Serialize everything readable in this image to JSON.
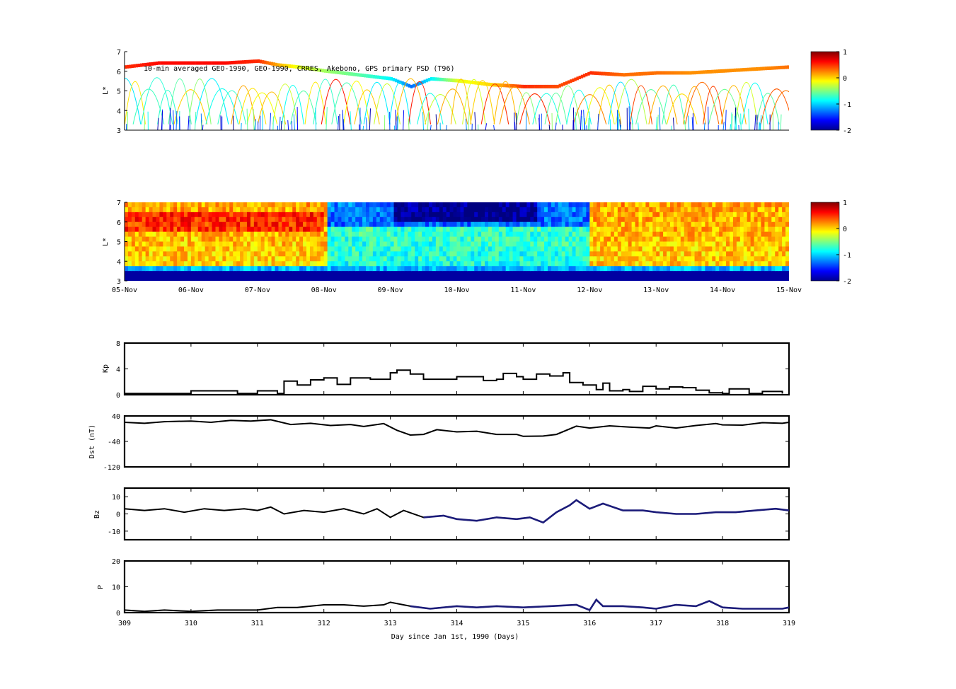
{
  "chart_data": [
    {
      "type": "scatter",
      "name": "observed-psd",
      "title": "10-min averaged GEO-1990, GEO-1990, CRRES, Akebono, GPS  primary PSD (T96)",
      "ylabel": "L*",
      "ylim": [
        3,
        7
      ],
      "yticks": [
        "3",
        "4",
        "5",
        "6",
        "7"
      ],
      "colorbar": {
        "ticks": [
          "1",
          "0",
          "-1",
          "-2"
        ],
        "range": [
          -2,
          1
        ]
      },
      "geo_track": {
        "x": [
          309.0,
          309.5,
          310.0,
          310.5,
          311.0,
          311.3,
          311.6,
          312.0,
          312.5,
          313.0,
          313.3,
          313.6,
          314.0,
          314.5,
          315.0,
          315.5,
          316.0,
          316.5,
          317.0,
          317.5,
          318.0,
          318.5,
          319.0
        ],
        "l": [
          6.2,
          6.4,
          6.4,
          6.4,
          6.5,
          6.3,
          6.2,
          6.0,
          5.8,
          5.6,
          5.2,
          5.6,
          5.5,
          5.3,
          5.2,
          5.2,
          5.9,
          5.8,
          5.9,
          5.9,
          6.0,
          6.1,
          6.2
        ],
        "v": [
          0.5,
          0.6,
          0.6,
          0.6,
          0.5,
          0.1,
          -0.2,
          -0.4,
          -0.6,
          -0.9,
          -1.3,
          -0.9,
          -0.2,
          0.0,
          0.5,
          0.4,
          0.5,
          0.3,
          0.3,
          0.2,
          0.2,
          0.2,
          0.3
        ]
      }
    },
    {
      "type": "heatmap",
      "name": "reanalysis-psd",
      "ylabel": "L*",
      "ylim": [
        3,
        7
      ],
      "yticks": [
        "3",
        "4",
        "5",
        "6",
        "7"
      ],
      "xticks": [
        "05-Nov",
        "06-Nov",
        "07-Nov",
        "08-Nov",
        "09-Nov",
        "10-Nov",
        "11-Nov",
        "12-Nov",
        "13-Nov",
        "14-Nov",
        "15-Nov"
      ],
      "colorbar": {
        "ticks": [
          "1",
          "0",
          "-1",
          "-2"
        ],
        "range": [
          -2,
          1
        ]
      }
    },
    {
      "type": "line",
      "name": "kp",
      "ylabel": "Kp",
      "ylim": [
        0,
        8
      ],
      "yticks": [
        "0",
        "4",
        "8"
      ],
      "x": [
        309.0,
        309.9,
        310.0,
        310.7,
        311.0,
        311.3,
        311.4,
        311.6,
        311.8,
        312.0,
        312.2,
        312.4,
        312.7,
        313.0,
        313.1,
        313.3,
        313.5,
        313.9,
        314.0,
        314.2,
        314.4,
        314.6,
        314.7,
        314.9,
        315.0,
        315.2,
        315.4,
        315.6,
        315.7,
        315.9,
        316.0,
        316.1,
        316.2,
        316.3,
        316.5,
        316.6,
        316.8,
        317.0,
        317.2,
        317.4,
        317.6,
        317.8,
        318.0,
        318.1,
        318.4,
        318.6,
        318.9
      ],
      "y": [
        0.2,
        0.2,
        0.6,
        0.2,
        0.6,
        0.2,
        2.1,
        1.5,
        2.3,
        2.6,
        1.6,
        2.6,
        2.4,
        3.4,
        3.8,
        3.2,
        2.4,
        2.4,
        2.8,
        2.8,
        2.2,
        2.4,
        3.3,
        2.8,
        2.4,
        3.2,
        2.9,
        3.4,
        1.9,
        1.5,
        1.5,
        0.8,
        1.8,
        0.6,
        0.8,
        0.5,
        1.3,
        0.9,
        1.2,
        1.1,
        0.7,
        0.3,
        0.2,
        0.9,
        0.2,
        0.5,
        0.2
      ],
      "xlim": [
        309,
        319
      ]
    },
    {
      "type": "line",
      "name": "dst",
      "ylabel": "Dst (nT)",
      "ylim": [
        -120,
        40
      ],
      "yticks": [
        "40",
        "-40",
        "-120"
      ],
      "x": [
        309.0,
        309.3,
        309.6,
        310.0,
        310.3,
        310.6,
        310.9,
        311.2,
        311.5,
        311.8,
        312.1,
        312.4,
        312.6,
        312.9,
        313.1,
        313.3,
        313.5,
        313.7,
        314.0,
        314.3,
        314.6,
        314.9,
        315.0,
        315.3,
        315.5,
        315.8,
        316.0,
        316.3,
        316.6,
        316.9,
        317.0,
        317.3,
        317.6,
        317.9,
        318.0,
        318.3,
        318.6,
        318.9,
        319.0
      ],
      "y": [
        20,
        17,
        22,
        24,
        20,
        26,
        24,
        28,
        13,
        17,
        10,
        13,
        7,
        16,
        -5,
        -20,
        -18,
        -3,
        -10,
        -8,
        -18,
        -18,
        -24,
        -23,
        -18,
        8,
        2,
        9,
        5,
        2,
        9,
        2,
        10,
        16,
        12,
        11,
        19,
        17,
        20
      ],
      "xlim": [
        309,
        319
      ]
    },
    {
      "type": "line",
      "name": "bz",
      "ylabel": "Bz",
      "ylim": [
        -15,
        15
      ],
      "yticks": [
        "10",
        "0",
        "-10"
      ],
      "x": [
        309.0,
        309.3,
        309.6,
        309.9,
        310.2,
        310.5,
        310.8,
        311.0,
        311.2,
        311.4,
        311.7,
        312.0,
        312.3,
        312.6,
        312.8,
        313.0,
        313.2,
        313.5,
        313.8,
        314.0,
        314.3,
        314.6,
        314.9,
        315.1,
        315.3,
        315.5,
        315.7,
        315.8,
        316.0,
        316.2,
        316.5,
        316.8,
        317.0,
        317.3,
        317.6,
        317.9,
        318.2,
        318.5,
        318.8,
        319.0
      ],
      "y": [
        3,
        2,
        3,
        1,
        3,
        2,
        3,
        2,
        4,
        0,
        2,
        1,
        3,
        0,
        3,
        -2,
        2,
        -2,
        -1,
        -3,
        -4,
        -2,
        -3,
        -2,
        -5,
        1,
        5,
        8,
        3,
        6,
        2,
        2,
        1,
        0,
        0,
        1,
        1,
        2,
        3,
        2
      ],
      "xlim": [
        309,
        319
      ]
    },
    {
      "type": "line",
      "name": "p",
      "ylabel": "P",
      "ylim": [
        0,
        20
      ],
      "yticks": [
        "20",
        "10",
        "0"
      ],
      "x": [
        309.0,
        309.3,
        309.6,
        310.0,
        310.4,
        310.8,
        311.0,
        311.3,
        311.6,
        312.0,
        312.3,
        312.6,
        312.9,
        313.0,
        313.3,
        313.6,
        314.0,
        314.3,
        314.6,
        315.0,
        315.4,
        315.8,
        316.0,
        316.1,
        316.2,
        316.5,
        316.8,
        317.0,
        317.3,
        317.6,
        317.8,
        318.0,
        318.3,
        318.6,
        318.9,
        319.0
      ],
      "y": [
        1,
        0.5,
        1,
        0.5,
        1,
        1,
        1,
        2,
        2,
        3,
        3,
        2.5,
        3,
        4,
        2.5,
        1.5,
        2.5,
        2,
        2.5,
        2,
        2.5,
        3,
        1,
        5,
        2.5,
        2.5,
        2,
        1.5,
        3,
        2.5,
        4.5,
        2,
        1.5,
        1.5,
        1.5,
        2
      ],
      "xlim": [
        309,
        319
      ]
    }
  ],
  "shared_axis": {
    "xticks": [
      "309",
      "310",
      "311",
      "312",
      "313",
      "314",
      "315",
      "316",
      "317",
      "318",
      "319"
    ],
    "xlabel": "Day since Jan 1st, 1990 (Days)"
  },
  "colors": {
    "line": "#000000",
    "line_highlight": "#1c1c7a",
    "frame": "#000000"
  }
}
